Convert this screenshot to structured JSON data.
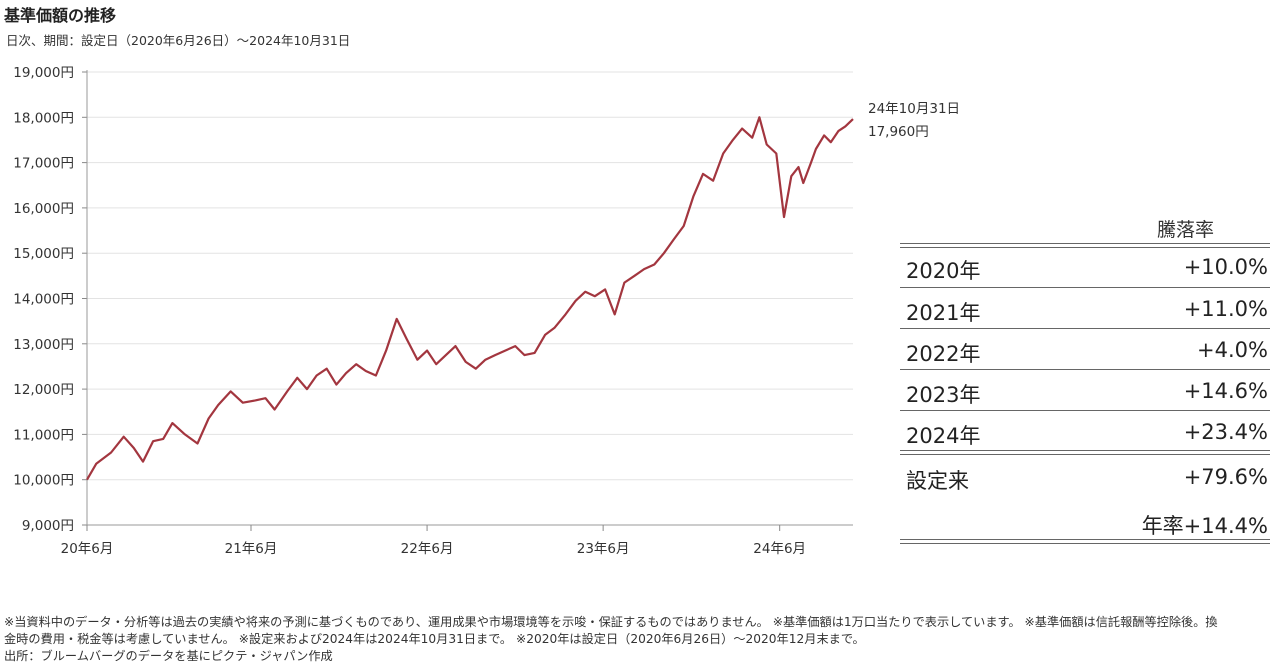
{
  "title": "基準価額の推移",
  "subtitle": "日次、期間：設定日（2020年6月26日）〜2024年10月31日",
  "chart_data": {
    "type": "line",
    "series": [
      {
        "color": "#a3363f",
        "x": [
          "2020-06-26",
          "2020-07-15",
          "2020-08-15",
          "2020-09-10",
          "2020-10-01",
          "2020-10-20",
          "2020-11-10",
          "2020-12-01",
          "2020-12-20",
          "2021-01-15",
          "2021-02-10",
          "2021-03-05",
          "2021-03-25",
          "2021-04-20",
          "2021-05-15",
          "2021-06-10",
          "2021-07-01",
          "2021-07-20",
          "2021-08-15",
          "2021-09-05",
          "2021-09-25",
          "2021-10-15",
          "2021-11-05",
          "2021-11-25",
          "2021-12-15",
          "2022-01-05",
          "2022-01-25",
          "2022-02-15",
          "2022-03-08",
          "2022-03-30",
          "2022-04-20",
          "2022-05-12",
          "2022-06-01",
          "2022-06-20",
          "2022-07-10",
          "2022-07-30",
          "2022-08-20",
          "2022-09-10",
          "2022-09-30",
          "2022-10-20",
          "2022-11-10",
          "2022-12-01",
          "2022-12-20",
          "2023-01-10",
          "2023-02-01",
          "2023-02-20",
          "2023-03-15",
          "2023-04-05",
          "2023-04-25",
          "2023-05-15",
          "2023-06-05",
          "2023-06-25",
          "2023-07-15",
          "2023-08-05",
          "2023-08-25",
          "2023-09-15",
          "2023-10-05",
          "2023-10-25",
          "2023-11-15",
          "2023-12-05",
          "2023-12-25",
          "2024-01-15",
          "2024-02-05",
          "2024-02-25",
          "2024-03-15",
          "2024-04-05",
          "2024-04-20",
          "2024-05-05",
          "2024-05-25",
          "2024-06-10",
          "2024-06-25",
          "2024-07-10",
          "2024-07-20",
          "2024-08-05",
          "2024-08-15",
          "2024-09-01",
          "2024-09-15",
          "2024-10-01",
          "2024-10-15",
          "2024-10-31"
        ],
        "y": [
          10000,
          10350,
          10600,
          10950,
          10700,
          10400,
          10850,
          10900,
          11250,
          11000,
          10800,
          11350,
          11650,
          11950,
          11700,
          11750,
          11800,
          11550,
          11950,
          12250,
          12000,
          12300,
          12450,
          12100,
          12350,
          12550,
          12400,
          12300,
          12850,
          13550,
          13100,
          12650,
          12850,
          12550,
          12750,
          12950,
          12600,
          12450,
          12650,
          12750,
          12850,
          12950,
          12750,
          12800,
          13200,
          13350,
          13650,
          13950,
          14150,
          14050,
          14200,
          13650,
          14350,
          14500,
          14650,
          14750,
          15000,
          15300,
          15600,
          16250,
          16750,
          16600,
          17200,
          17500,
          17750,
          17550,
          18000,
          17400,
          17200,
          15800,
          16700,
          16900,
          16550,
          17000,
          17300,
          17600,
          17450,
          17700,
          17800,
          17960
        ]
      }
    ],
    "x_ticks": [
      "20年6月",
      "21年6月",
      "22年6月",
      "23年6月",
      "24年6月"
    ],
    "y_ticks": [
      "9,000円",
      "10,000円",
      "11,000円",
      "12,000円",
      "13,000円",
      "14,000円",
      "15,000円",
      "16,000円",
      "17,000円",
      "18,000円",
      "19,000円"
    ],
    "ylim": [
      9000,
      19000
    ],
    "xlim": [
      "2020-06-26",
      "2024-10-31"
    ],
    "end_annotation": [
      "24年10月31日",
      "17,960円"
    ],
    "grid": "horizontal"
  },
  "rate_table": {
    "header": "騰落率",
    "rows": [
      {
        "label": "2020年",
        "value": "+10.0%"
      },
      {
        "label": "2021年",
        "value": "+11.0%"
      },
      {
        "label": "2022年",
        "value": "+4.0%"
      },
      {
        "label": "2023年",
        "value": "+14.6%"
      },
      {
        "label": "2024年",
        "value": "+23.4%"
      },
      {
        "label": "設定来",
        "value": "+79.6%"
      }
    ],
    "annualized": "年率+14.4%"
  },
  "footnote": {
    "line1": "※当資料中のデータ・分析等は過去の実績や将来の予測に基づくものであり、運用成果や市場環境等を示唆・保証するものではありません。 ※基準価額は1万口当たりで表示しています。 ※基準価額は信託報酬等控除後。換",
    "line2": "金時の費用・税金等は考慮していません。 ※設定来および2024年は2024年10月31日まで。 ※2020年は設定日（2020年6月26日）〜2020年12月末まで。",
    "line3": "出所：ブルームバーグのデータを基にピクテ・ジャパン作成"
  }
}
